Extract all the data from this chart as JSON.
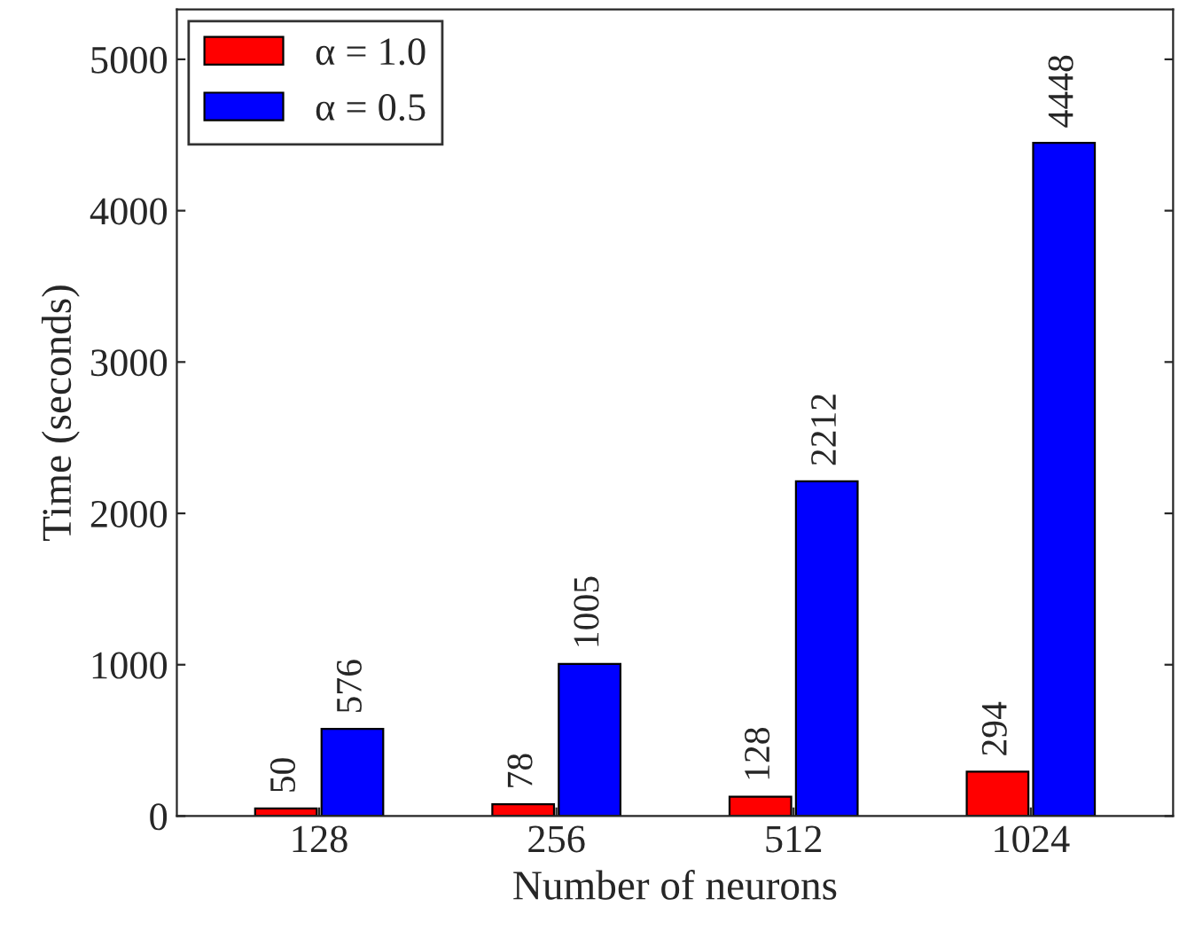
{
  "chart_data": {
    "type": "bar",
    "xlabel": "Number of neurons",
    "ylabel": "Time (seconds)",
    "categories": [
      "128",
      "256",
      "512",
      "1024"
    ],
    "series": [
      {
        "name": "α = 1.0",
        "color": "#ff0000",
        "values": [
          50,
          78,
          128,
          294
        ]
      },
      {
        "name": "α = 0.5",
        "color": "#0000ff",
        "values": [
          576,
          1005,
          2212,
          4448
        ]
      }
    ],
    "ylim": [
      0,
      5330
    ],
    "yticks": [
      0,
      1000,
      2000,
      3000,
      4000,
      5000
    ],
    "data_labels": true,
    "legend": "top left",
    "grid": false
  }
}
